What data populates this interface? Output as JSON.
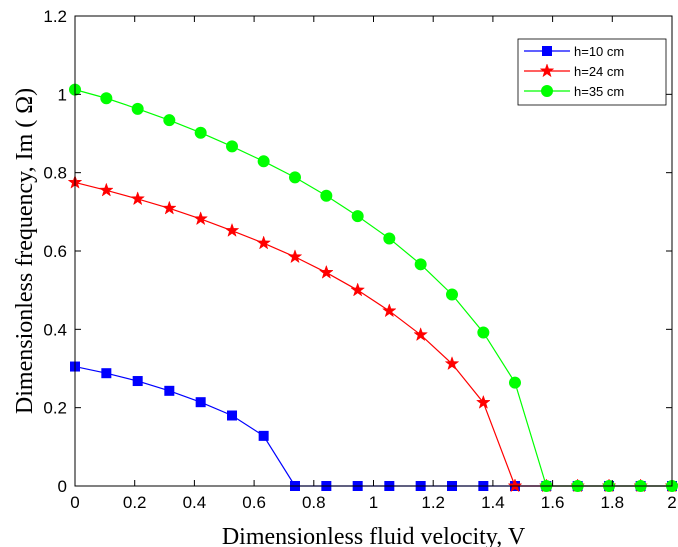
{
  "chart_data": {
    "type": "line",
    "title": "",
    "xlabel": "Dimensionless fluid velocity, V",
    "ylabel": "Dimensionless frequency, Im ( Ω)",
    "xlim": [
      0,
      2
    ],
    "ylim": [
      0,
      1.2
    ],
    "xticks": [
      0,
      0.2,
      0.4,
      0.6,
      0.8,
      1,
      1.2,
      1.4,
      1.6,
      1.8,
      2
    ],
    "xtick_labels": [
      "0",
      "0.2",
      "0.4",
      "0.6",
      "0.8",
      "1",
      "1.2",
      "1.4",
      "1.6",
      "1.8",
      "2"
    ],
    "yticks": [
      0,
      0.2,
      0.4,
      0.6,
      0.8,
      1,
      1.2
    ],
    "ytick_labels": [
      "0",
      "0.2",
      "0.4",
      "0.6",
      "0.8",
      "1",
      "1.2"
    ],
    "grid": false,
    "legend_position": "top-right",
    "series": [
      {
        "name": "h=10 cm",
        "color": "#0000ff",
        "marker": "square",
        "x": [
          0,
          0.105,
          0.21,
          0.316,
          0.421,
          0.526,
          0.632,
          0.737,
          0.842,
          0.947,
          1.053,
          1.158,
          1.263,
          1.368,
          1.474,
          1.579,
          1.684,
          1.789,
          1.895,
          2.0
        ],
        "y": [
          0.305,
          0.288,
          0.268,
          0.243,
          0.214,
          0.18,
          0.128,
          0,
          0,
          0,
          0,
          0,
          0,
          0,
          0,
          0,
          0,
          0,
          0,
          0
        ]
      },
      {
        "name": "h=24 cm",
        "color": "#ff0000",
        "marker": "star",
        "x": [
          0,
          0.105,
          0.21,
          0.316,
          0.421,
          0.526,
          0.632,
          0.737,
          0.842,
          0.947,
          1.053,
          1.158,
          1.263,
          1.368,
          1.474,
          1.579,
          1.684,
          1.789,
          1.895,
          2.0
        ],
        "y": [
          0.775,
          0.755,
          0.733,
          0.709,
          0.682,
          0.652,
          0.62,
          0.585,
          0.545,
          0.5,
          0.447,
          0.386,
          0.312,
          0.213,
          0,
          0,
          0,
          0,
          0,
          0
        ]
      },
      {
        "name": "h=35 cm",
        "color": "#00ff00",
        "marker": "circle",
        "x": [
          0,
          0.105,
          0.21,
          0.316,
          0.421,
          0.526,
          0.632,
          0.737,
          0.842,
          0.947,
          1.053,
          1.158,
          1.263,
          1.368,
          1.474,
          1.579,
          1.684,
          1.789,
          1.895,
          2.0
        ],
        "y": [
          1.012,
          0.99,
          0.963,
          0.934,
          0.902,
          0.867,
          0.829,
          0.788,
          0.741,
          0.689,
          0.632,
          0.566,
          0.489,
          0.392,
          0.264,
          0,
          0,
          0,
          0,
          0
        ]
      }
    ]
  }
}
